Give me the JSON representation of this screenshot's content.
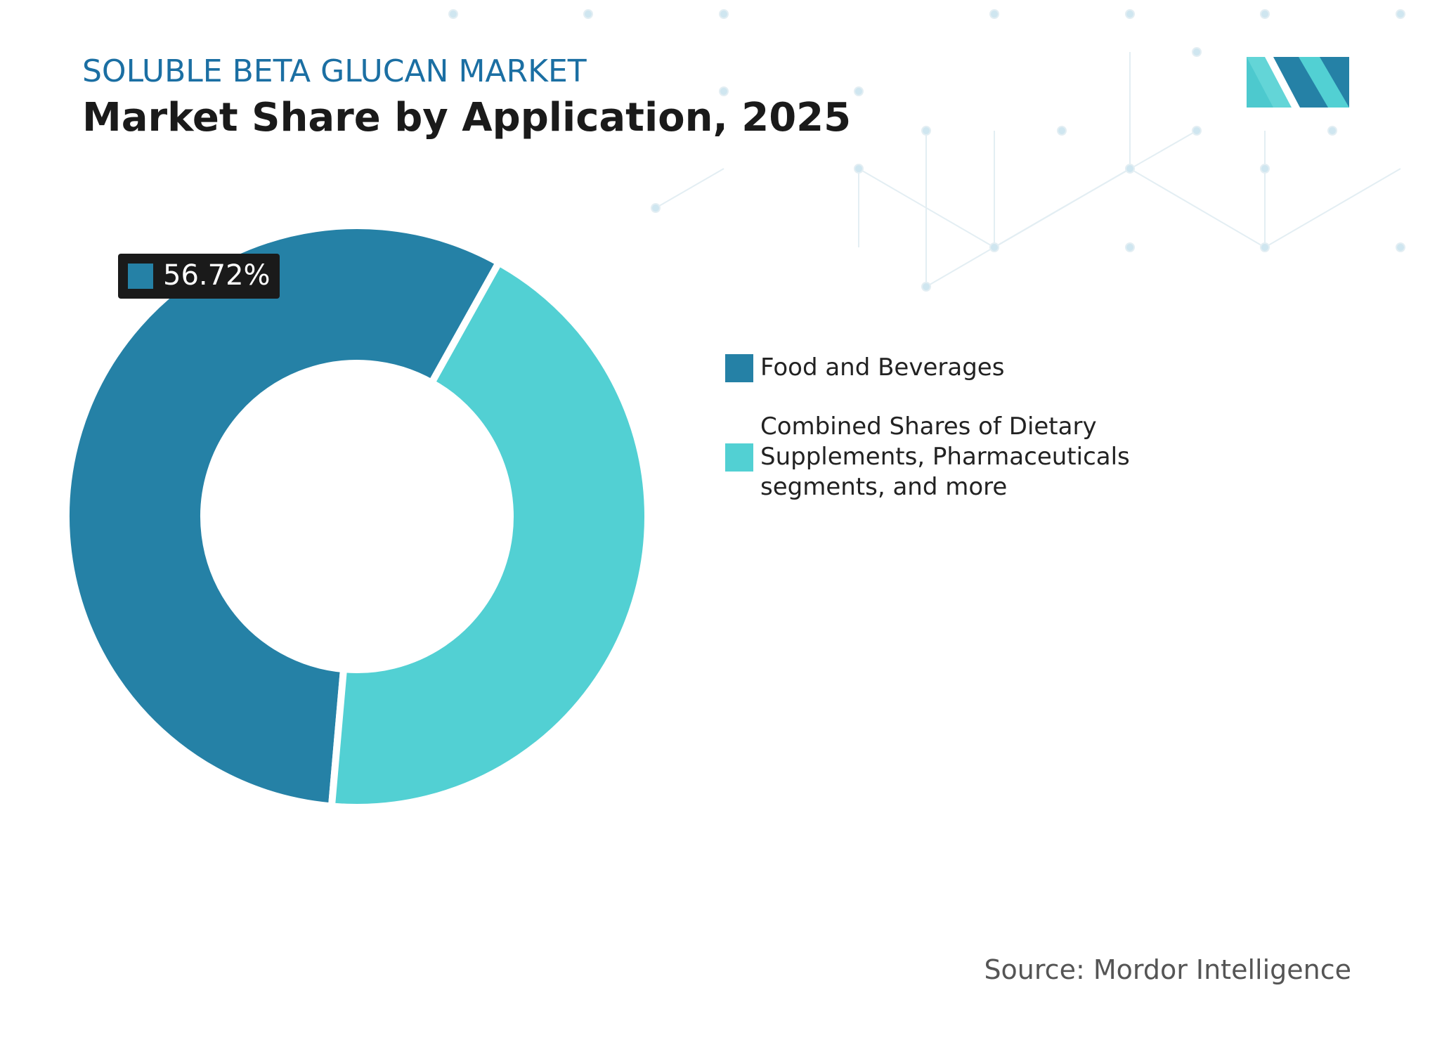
{
  "chart_data": {
    "type": "pie",
    "title": "SOLUBLE BETA GLUCAN MARKET",
    "subtitle": "Market Share by Application, 2025",
    "source": "Source: Mordor Intelligence",
    "categories": [
      "Food and Beverages",
      "Combined Shares of Dietary Supplements, Pharmaceuticals segments, and more"
    ],
    "values": [
      56.72,
      43.28
    ],
    "value_labels": [
      "56.72%",
      null
    ],
    "colors": [
      "#2581a6",
      "#52d0d3"
    ],
    "legend": "right"
  }
}
